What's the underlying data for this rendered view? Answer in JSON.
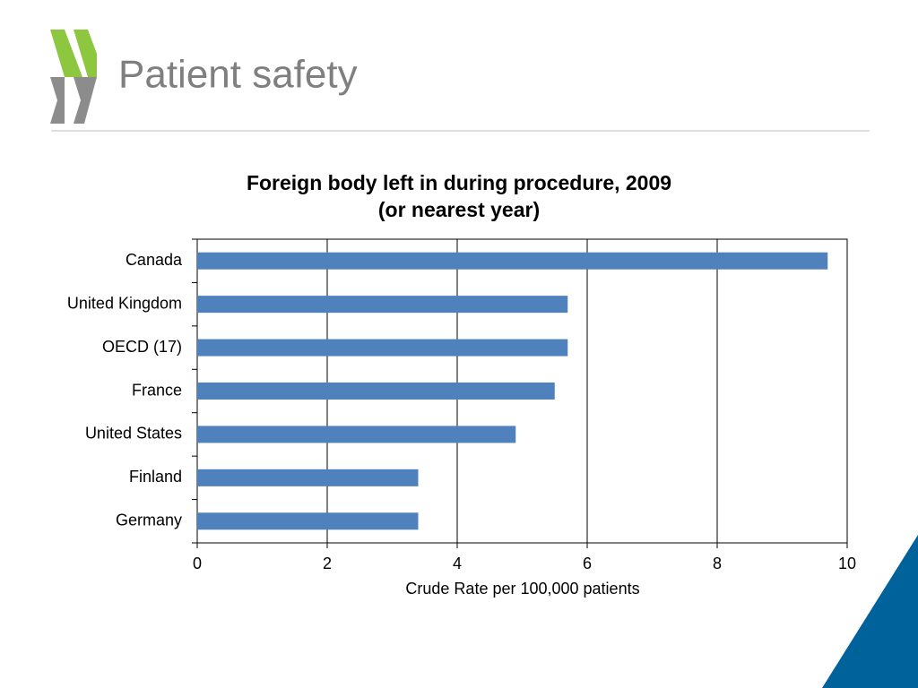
{
  "slide_title": "Patient safety",
  "chart_data": {
    "type": "barh",
    "title": "Foreign body left in during procedure, 2009",
    "subtitle": "(or nearest year)",
    "x_label": "Crude Rate per 100,000 patients",
    "categories": [
      "Canada",
      "United Kingdom",
      "OECD (17)",
      "France",
      "United States",
      "Finland",
      "Germany"
    ],
    "values": [
      9.7,
      5.7,
      5.7,
      5.5,
      4.9,
      3.4,
      3.4
    ],
    "color": "#4f81bd",
    "xlim": [
      0,
      10
    ],
    "xticks": [
      0,
      2,
      4,
      6,
      8,
      10
    ],
    "grid": true
  }
}
